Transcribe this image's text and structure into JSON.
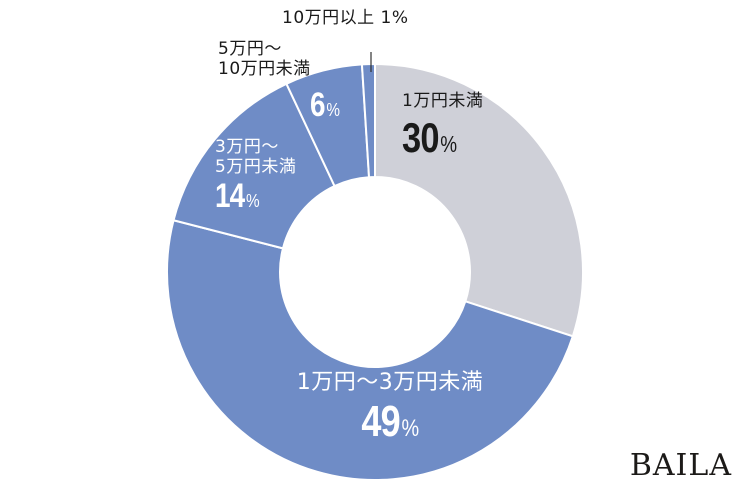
{
  "chart_data": {
    "type": "pie",
    "subtype": "donut",
    "title": "",
    "start_angle": "12 o'clock",
    "direction": "clockwise",
    "categories": [
      "1万円未満",
      "1万円〜3万円未満",
      "3万円〜5万円未満",
      "5万円〜10万円未満",
      "10万円以上"
    ],
    "values": [
      30,
      49,
      14,
      6,
      1
    ],
    "unit": "%",
    "colors": [
      "#cfd0d8",
      "#6f8cc6",
      "#6f8cc6",
      "#6f8cc6",
      "#6f8cc6"
    ],
    "legend": "none (labels inside slices)"
  },
  "labels": {
    "s0": {
      "cat": "1万円未満",
      "pct": "30",
      "sym": "%"
    },
    "s1": {
      "cat": "1万円〜3万円未満",
      "pct": "49",
      "sym": "%"
    },
    "s2": {
      "cat1": "3万円〜",
      "cat2": "5万円未満",
      "pct": "14",
      "sym": "%"
    },
    "s3": {
      "cat1": "5万円〜",
      "cat2": "10万円未満",
      "pct": "6",
      "sym": "%"
    },
    "s4": {
      "text": "10万円以上 1%"
    }
  },
  "brand": {
    "logo": "BAILA"
  },
  "colors": {
    "blue": "#6f8cc6",
    "gray": "#cfd0d8",
    "separator": "#ffffff",
    "text_dark": "#1a1a1a"
  }
}
